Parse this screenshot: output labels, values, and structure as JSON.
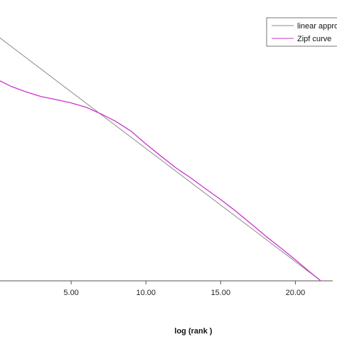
{
  "chart_data": {
    "type": "line",
    "title": "",
    "xlabel": "log (rank )",
    "ylabel": "",
    "xlim": [
      0,
      22.5
    ],
    "ylim": [
      0,
      100
    ],
    "xticks": [
      5,
      10,
      15,
      20
    ],
    "xtick_labels": [
      "5.00",
      "10.00",
      "15.00",
      "20.00"
    ],
    "grid": false,
    "legend_position": "top-right",
    "series": [
      {
        "name": "linear appro",
        "color": "#8a8a8a",
        "x": [
          0,
          21.7
        ],
        "y": [
          89.7,
          0
        ]
      },
      {
        "name": "Zipf curve",
        "color": "#cc33cc",
        "x": [
          0,
          1,
          2,
          3,
          4,
          5,
          6,
          7,
          8,
          9,
          10,
          11,
          12,
          13,
          14,
          15,
          16,
          17,
          18,
          19,
          20,
          21,
          21.7
        ],
        "y": [
          73.7,
          71.0,
          69.0,
          67.3,
          66.2,
          65.0,
          63.4,
          61.0,
          58.2,
          54.7,
          50.0,
          45.6,
          41.3,
          37.6,
          33.6,
          29.7,
          25.5,
          21.0,
          16.4,
          12.1,
          7.7,
          3.1,
          0
        ]
      }
    ]
  }
}
